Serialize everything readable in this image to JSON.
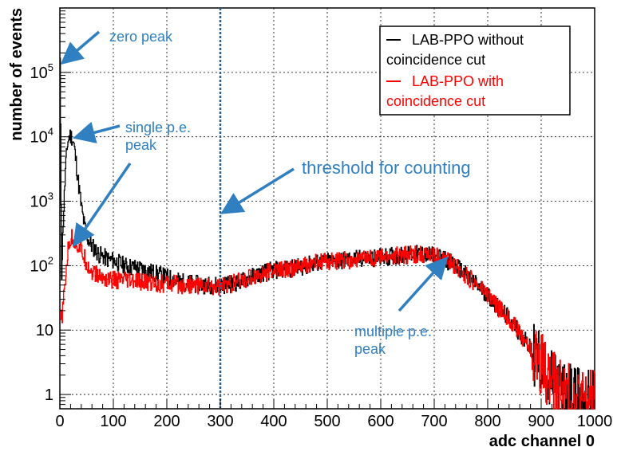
{
  "chart_data": {
    "type": "line",
    "xlabel": "adc channel 0",
    "ylabel": "number of events",
    "xlim": [
      0,
      1000
    ],
    "ylim": [
      0.6,
      1000000
    ],
    "yscale": "log",
    "grid": true,
    "legend_position": "top-right",
    "x_ticks": [
      0,
      100,
      200,
      300,
      400,
      500,
      600,
      700,
      800,
      900,
      1000
    ],
    "x_tick_labels": [
      "0",
      "100",
      "200",
      "300",
      "400",
      "500",
      "600",
      "700",
      "800",
      "900",
      "1000"
    ],
    "y_ticks": [
      {
        "value": 1,
        "base": "1",
        "exp": ""
      },
      {
        "value": 10,
        "base": "10",
        "exp": ""
      },
      {
        "value": 100,
        "base": "10",
        "exp": "2"
      },
      {
        "value": 1000,
        "base": "10",
        "exp": "3"
      },
      {
        "value": 10000,
        "base": "10",
        "exp": "4"
      },
      {
        "value": 100000,
        "base": "10",
        "exp": "5"
      }
    ],
    "threshold": {
      "x": 300,
      "label": "threshold for counting",
      "color": "#2e5f8a"
    },
    "series": [
      {
        "name": "LAB-PPO without coincidence cut",
        "color": "#000000",
        "x": [
          0,
          3,
          6,
          10,
          14,
          18,
          22,
          26,
          30,
          34,
          40,
          46,
          52,
          58,
          65,
          72,
          80,
          90,
          100,
          110,
          120,
          135,
          150,
          170,
          190,
          210,
          230,
          250,
          270,
          290,
          300,
          320,
          340,
          360,
          380,
          400,
          420,
          440,
          460,
          480,
          500,
          520,
          540,
          560,
          580,
          600,
          620,
          640,
          660,
          680,
          700,
          720,
          740,
          760,
          780,
          800,
          820,
          840,
          860,
          880,
          900,
          910,
          920,
          930,
          940,
          950,
          960,
          970,
          980,
          990,
          1000
        ],
        "y": [
          150000,
          80,
          500,
          3000,
          8000,
          10500,
          10000,
          7500,
          4000,
          2000,
          800,
          400,
          260,
          210,
          180,
          150,
          140,
          125,
          120,
          110,
          100,
          95,
          90,
          80,
          70,
          62,
          55,
          52,
          50,
          50,
          50,
          52,
          58,
          68,
          78,
          85,
          88,
          92,
          100,
          110,
          115,
          118,
          122,
          128,
          132,
          135,
          140,
          145,
          150,
          150,
          140,
          125,
          100,
          70,
          50,
          35,
          22,
          15,
          9,
          5,
          3,
          2.2,
          1.6,
          1.3,
          1.1,
          1,
          0.9,
          0.85,
          0.8,
          0.8,
          0.8
        ]
      },
      {
        "name": "LAB-PPO with coincidence cut",
        "color": "#ff0000",
        "x": [
          0,
          3,
          6,
          10,
          14,
          18,
          22,
          26,
          30,
          34,
          40,
          46,
          52,
          60,
          70,
          80,
          90,
          100,
          110,
          130,
          150,
          170,
          190,
          210,
          230,
          250,
          270,
          290,
          300,
          320,
          340,
          360,
          380,
          400,
          420,
          440,
          460,
          480,
          500,
          520,
          540,
          560,
          580,
          600,
          620,
          640,
          660,
          680,
          700,
          720,
          740,
          760,
          780,
          800,
          820,
          840,
          860,
          880,
          900,
          910,
          920,
          930,
          940,
          950,
          960,
          970,
          980,
          990,
          1000
        ],
        "y": [
          15,
          15,
          25,
          60,
          150,
          240,
          270,
          250,
          220,
          200,
          170,
          130,
          100,
          80,
          70,
          65,
          62,
          60,
          58,
          57,
          55,
          55,
          52,
          52,
          50,
          50,
          48,
          48,
          48,
          52,
          58,
          68,
          75,
          85,
          88,
          92,
          100,
          110,
          115,
          118,
          122,
          128,
          132,
          135,
          140,
          145,
          150,
          150,
          140,
          125,
          100,
          70,
          50,
          35,
          22,
          15,
          9,
          5,
          3,
          2.2,
          1.6,
          1.3,
          1.1,
          1,
          0.9,
          0.85,
          0.8,
          0.8,
          0.8
        ]
      }
    ],
    "annotations": [
      {
        "id": "zero-peak",
        "text": [
          "zero peak"
        ],
        "target_x": 0,
        "target_y": 150000
      },
      {
        "id": "single-pe-peak",
        "text": [
          "single p.e.",
          "peak"
        ],
        "target_x": 25,
        "target_y": 10000,
        "target2_x": 30,
        "target2_y": 230
      },
      {
        "id": "threshold-label",
        "text": [
          "threshold for counting"
        ],
        "target_x": 300,
        "target_y": 700
      },
      {
        "id": "multiple-pe-peak",
        "text": [
          "multiple p.e.",
          "peak"
        ],
        "target_x": 710,
        "target_y": 120
      }
    ],
    "anno_color": "#2f7fc1"
  }
}
